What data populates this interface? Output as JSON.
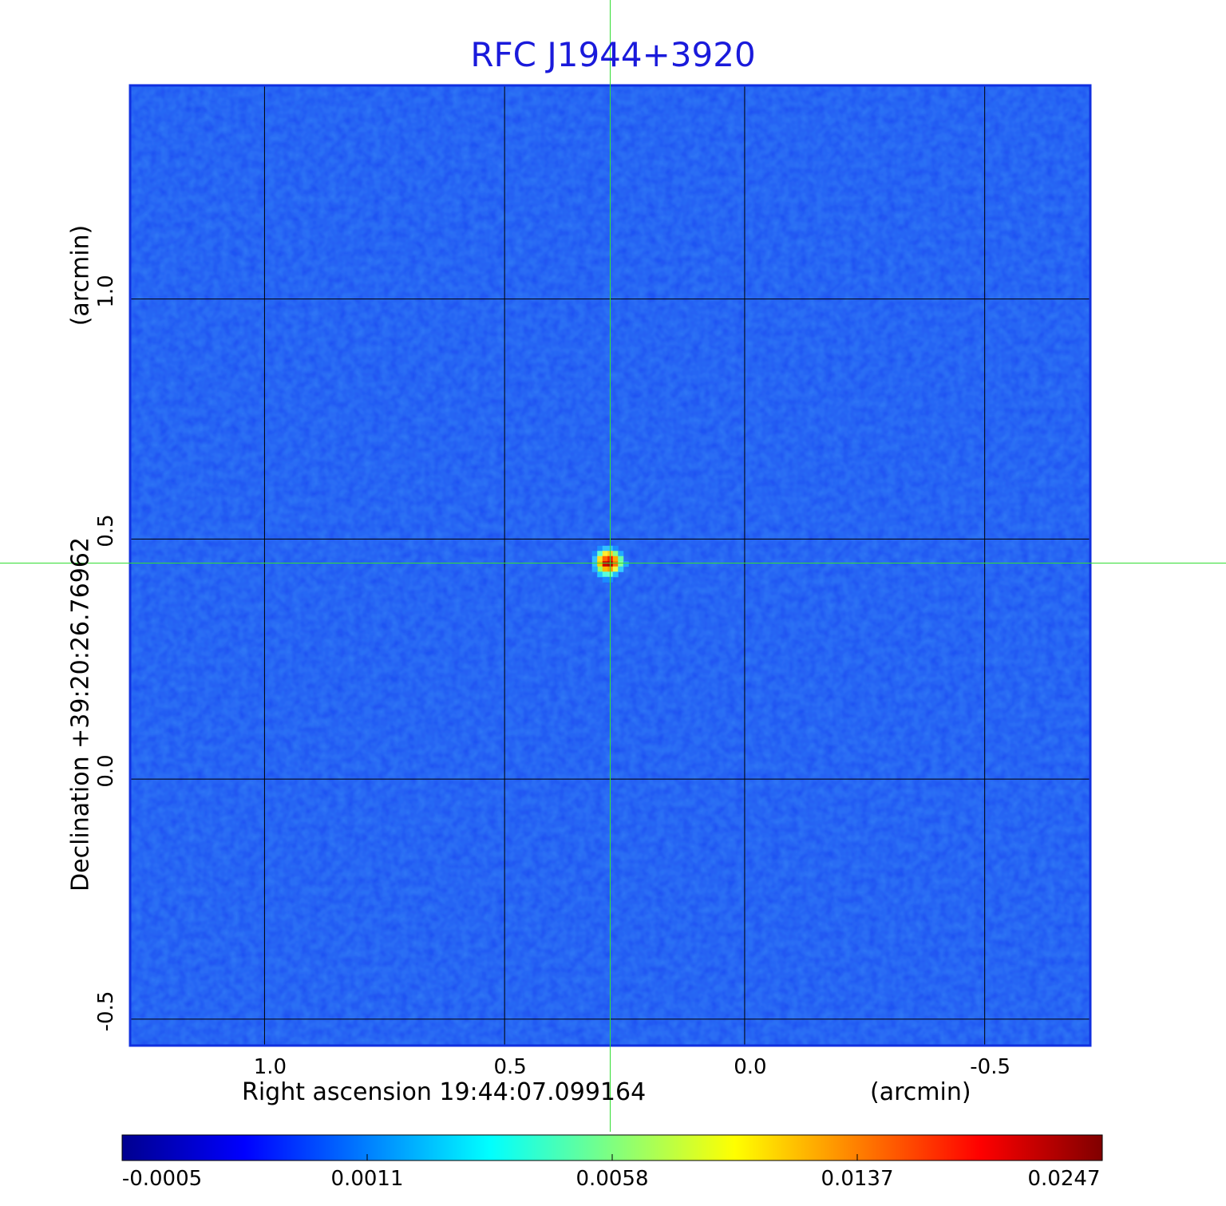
{
  "colors": {
    "title": "#1a1adb",
    "frame": "#1030e0",
    "grid": "#000000",
    "crosshair": "#33dd33",
    "background_field": "#1f55f2"
  },
  "chart_data": {
    "type": "heatmap",
    "title": "RFC J1944+3920",
    "xlabel": "Right ascension  19:44:07.099164",
    "xlabel_unit": "(arcmin)",
    "ylabel": "Declination  +39:20:26.76962",
    "ylabel_unit": "(arcmin)",
    "xlim": [
      1.28,
      -0.72
    ],
    "ylim": [
      -0.555,
      1.445
    ],
    "x_ticks": [
      {
        "value": 1.0,
        "label": "1.0"
      },
      {
        "value": 0.5,
        "label": "0.5"
      },
      {
        "value": 0.0,
        "label": "0.0"
      },
      {
        "value": -0.5,
        "label": "-0.5"
      }
    ],
    "y_ticks": [
      {
        "value": 1.0,
        "label": "1.0"
      },
      {
        "value": 0.5,
        "label": "0.5"
      },
      {
        "value": 0.0,
        "label": "0.0"
      },
      {
        "value": -0.5,
        "label": "-0.5"
      }
    ],
    "grid": true,
    "source_peak": {
      "x": 0.28,
      "y": 0.45,
      "value": 0.0247
    },
    "crosshair": {
      "x": 0.28,
      "y": 0.45
    },
    "colorbar": {
      "colormap": "jet",
      "position": "bottom",
      "ticks": [
        "-0.0005",
        "0.0011",
        "0.0058",
        "0.0137",
        "0.0247"
      ]
    }
  }
}
